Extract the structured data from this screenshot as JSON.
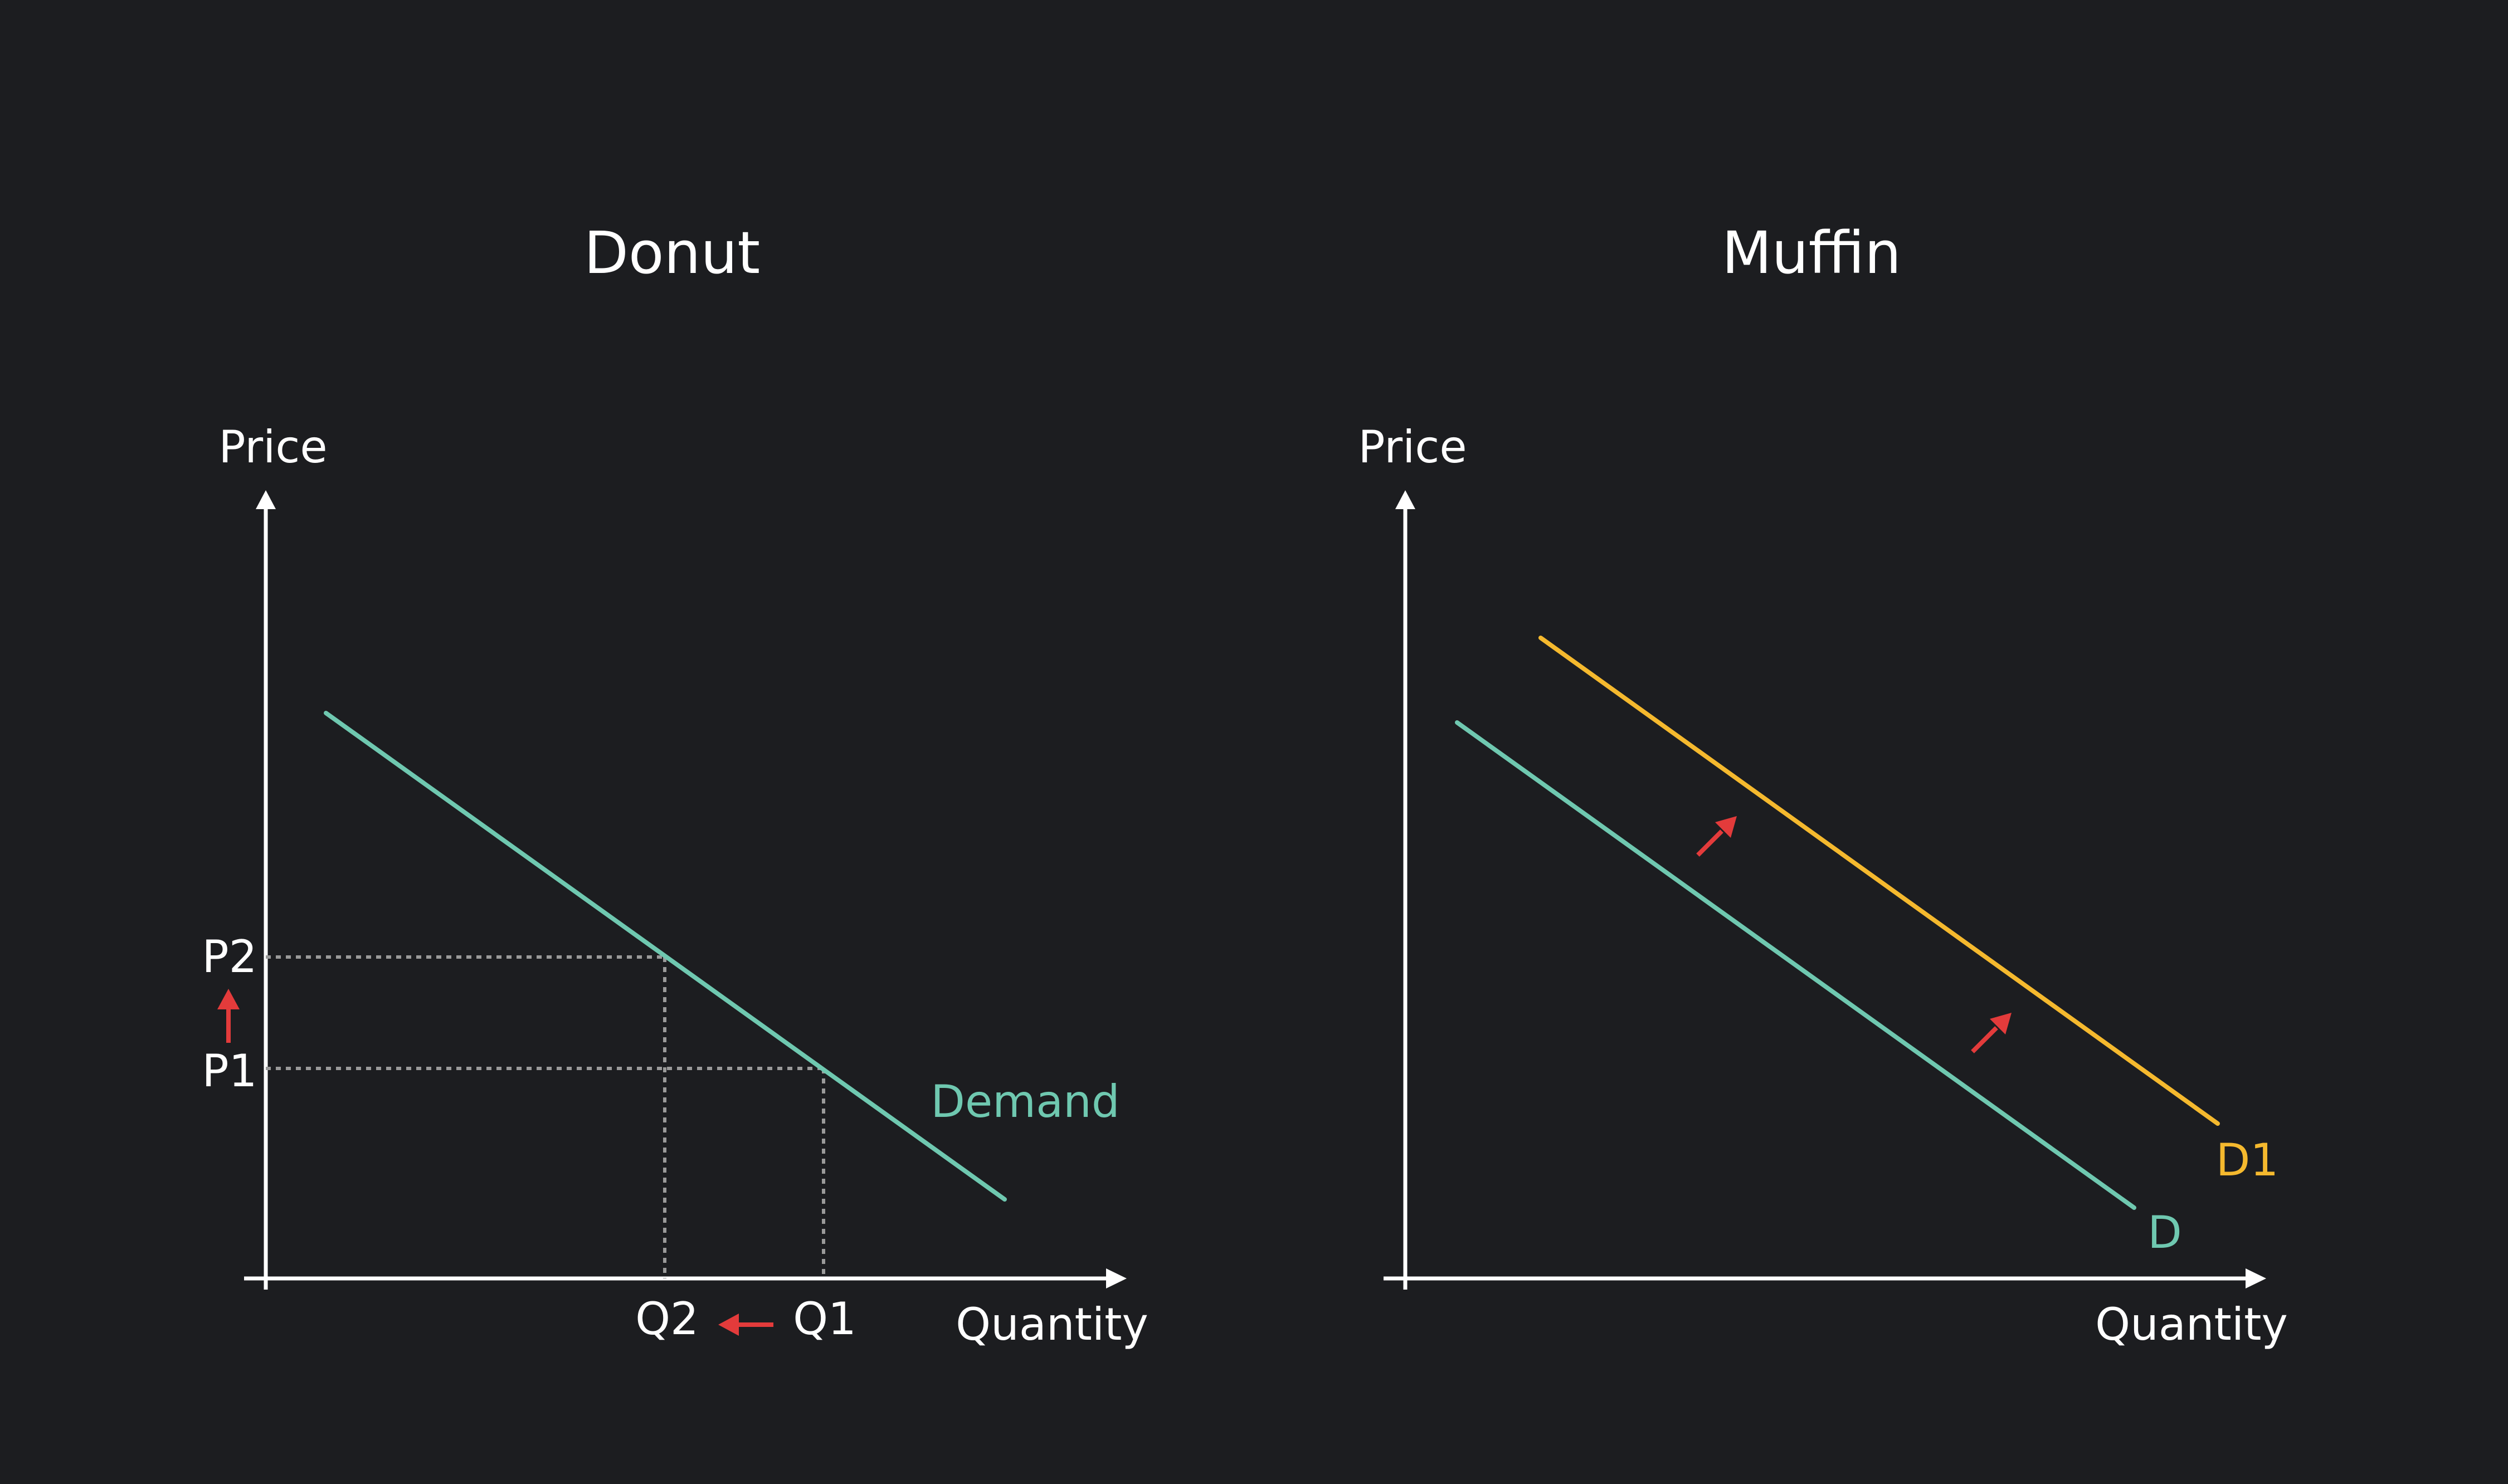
{
  "colors": {
    "background": "#1c1d20",
    "axis": "#ffffff",
    "text": "#ffffff",
    "demand": "#6fc8b0",
    "demand_shifted": "#f5b92e",
    "arrow": "#e33b3b",
    "guide": "#9a9a9a"
  },
  "donut": {
    "title": "Donut",
    "y_axis_label": "Price",
    "x_axis_label": "Quantity",
    "demand_label": "Demand",
    "price_labels": {
      "p1": "P1",
      "p2": "P2"
    },
    "quantity_labels": {
      "q1": "Q1",
      "q2": "Q2"
    },
    "annotations": {
      "price_change": "up-arrow",
      "quantity_change": "left-arrow"
    }
  },
  "muffin": {
    "title": "Muffin",
    "y_axis_label": "Price",
    "x_axis_label": "Quantity",
    "original_curve_label": "D",
    "shifted_curve_label": "D1",
    "annotations": {
      "shift_direction": "up-right-arrow",
      "shift_arrow_count": 2
    }
  }
}
